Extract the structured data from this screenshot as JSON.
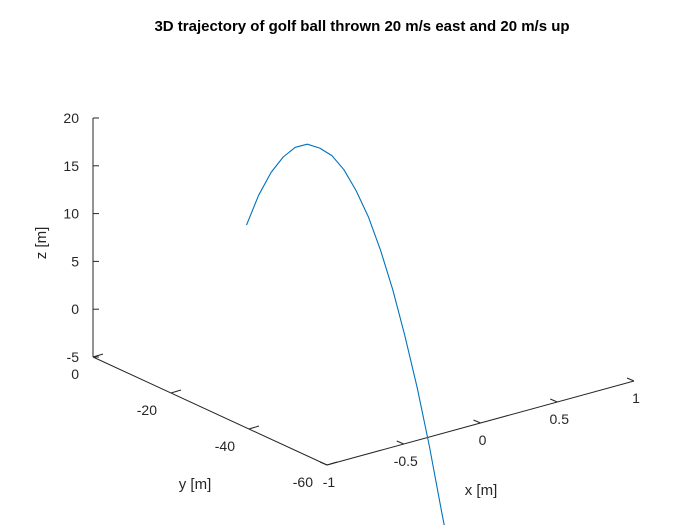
{
  "chart_data": {
    "type": "line",
    "title": "3D trajectory of golf ball thrown 20 m/s east and 20 m/s up",
    "xlabel": "x [m]",
    "ylabel": "y [m]",
    "zlabel": "z [m]",
    "xlim": [
      -1,
      1
    ],
    "ylim": [
      -60,
      0
    ],
    "zlim": [
      -5,
      20
    ],
    "x_ticks": [
      "-1",
      "-0.5",
      "0",
      "0.5",
      "1"
    ],
    "y_ticks": [
      "-60",
      "-40",
      "-20",
      "0"
    ],
    "z_ticks": [
      "-5",
      "0",
      "5",
      "10",
      "15",
      "20"
    ],
    "grid": false,
    "colors": {
      "series": "#0072bd",
      "axes": "#262626",
      "title": "#000000"
    },
    "series": [
      {
        "x": [
          0,
          0,
          0,
          0,
          0,
          0,
          0,
          0,
          0,
          0,
          0,
          0,
          0,
          0,
          0,
          0,
          0,
          0
        ],
        "y": [
          0.0,
          -3.1,
          -6.3,
          -9.4,
          -12.5,
          -15.6,
          -18.8,
          -21.9,
          -25.0,
          -28.1,
          -31.3,
          -34.4,
          -37.5,
          -40.6,
          -43.8,
          -46.9,
          -50.0,
          -51.5
        ],
        "z": [
          4.4,
          8.1,
          11.1,
          13.3,
          14.9,
          15.8,
          16.0,
          15.8,
          14.9,
          13.3,
          11.1,
          8.2,
          4.7,
          0.5,
          -4.4,
          -9.9,
          -16.1,
          -19.0
        ]
      }
    ]
  }
}
